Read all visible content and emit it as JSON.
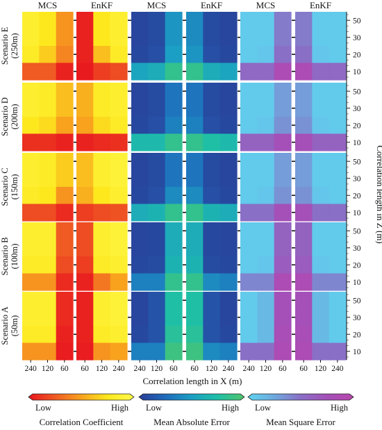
{
  "chart_data": {
    "type": "heatmap",
    "column_titles": [
      "MCS",
      "EnKF",
      "MCS",
      "EnKF",
      "MCS",
      "EnKF"
    ],
    "scenarios": [
      {
        "label": "Scenario E",
        "sub": "(250m)"
      },
      {
        "label": "Scenario D",
        "sub": "(200m)"
      },
      {
        "label": "Scenario C",
        "sub": "(150m)"
      },
      {
        "label": "Scenario B",
        "sub": "(100m)"
      },
      {
        "label": "Scenario A",
        "sub": "(50m)"
      }
    ],
    "x_ticks_mcs": [
      "240",
      "120",
      "60"
    ],
    "x_ticks_enkf": [
      "60",
      "120",
      "240"
    ],
    "z_ticks": [
      "50",
      "30",
      "20",
      "10"
    ],
    "xlabel": "Correlation length in X (m)",
    "ylabel_right": "Correlation length in Z (m)",
    "metrics": [
      {
        "name": "Correlation Coefficient",
        "low_label": "Low",
        "high_label": "High",
        "stops": [
          "#e8141e",
          "#f05a23",
          "#f8a21e",
          "#fde81e",
          "#fef94a"
        ]
      },
      {
        "name": "Mean Absolute Error",
        "low_label": "Low",
        "high_label": "High",
        "stops": [
          "#2a3d96",
          "#1f6bbb",
          "#1b9fc4",
          "#1fbfa6",
          "#52c46a"
        ]
      },
      {
        "name": "Mean Square Error",
        "low_label": "Low",
        "high_label": "High",
        "stops": [
          "#5fd3ef",
          "#6ea9de",
          "#8a6fc6",
          "#a450b8",
          "#b846ad"
        ]
      }
    ],
    "note": "Each panel: 4 rows (Z = 50, 30, 20, 10 top to bottom) x 3 columns (X). Values are relative levels 0 (Low) to 1 (High).",
    "values": {
      "cc": [
        {
          "mcs": [
            [
              0.85,
              0.75,
              0.45
            ],
            [
              0.85,
              0.75,
              0.45
            ],
            [
              0.8,
              0.65,
              0.4
            ],
            [
              0.25,
              0.25,
              0.05
            ]
          ],
          "enkf": [
            [
              0.05,
              0.75,
              0.85
            ],
            [
              0.05,
              0.75,
              0.85
            ],
            [
              0.05,
              0.6,
              0.8
            ],
            [
              0.02,
              0.15,
              0.2
            ]
          ]
        },
        {
          "mcs": [
            [
              0.85,
              0.8,
              0.6
            ],
            [
              0.85,
              0.8,
              0.6
            ],
            [
              0.75,
              0.7,
              0.5
            ],
            [
              0.1,
              0.1,
              0.05
            ]
          ],
          "enkf": [
            [
              0.55,
              0.8,
              0.85
            ],
            [
              0.55,
              0.8,
              0.85
            ],
            [
              0.5,
              0.7,
              0.8
            ],
            [
              0.05,
              0.08,
              0.1
            ]
          ]
        },
        {
          "mcs": [
            [
              0.85,
              0.8,
              0.65
            ],
            [
              0.85,
              0.8,
              0.65
            ],
            [
              0.8,
              0.75,
              0.45
            ],
            [
              0.2,
              0.2,
              0.08
            ]
          ],
          "enkf": [
            [
              0.6,
              0.85,
              0.9
            ],
            [
              0.6,
              0.85,
              0.9
            ],
            [
              0.55,
              0.75,
              0.85
            ],
            [
              0.15,
              0.2,
              0.22
            ]
          ]
        },
        {
          "mcs": [
            [
              0.85,
              0.85,
              0.25
            ],
            [
              0.85,
              0.85,
              0.25
            ],
            [
              0.8,
              0.8,
              0.2
            ],
            [
              0.45,
              0.45,
              0.08
            ]
          ],
          "enkf": [
            [
              0.2,
              0.85,
              0.9
            ],
            [
              0.2,
              0.85,
              0.9
            ],
            [
              0.15,
              0.8,
              0.85
            ],
            [
              0.05,
              0.35,
              0.5
            ]
          ]
        },
        {
          "mcs": [
            [
              0.85,
              0.85,
              0.08
            ],
            [
              0.85,
              0.85,
              0.08
            ],
            [
              0.8,
              0.8,
              0.05
            ],
            [
              0.45,
              0.45,
              0.03
            ]
          ],
          "enkf": [
            [
              0.05,
              0.85,
              0.9
            ],
            [
              0.05,
              0.85,
              0.9
            ],
            [
              0.05,
              0.8,
              0.85
            ],
            [
              0.03,
              0.45,
              0.5
            ]
          ]
        }
      ],
      "mae": [
        {
          "mcs": [
            [
              0.05,
              0.08,
              0.45
            ],
            [
              0.05,
              0.08,
              0.45
            ],
            [
              0.06,
              0.1,
              0.5
            ],
            [
              0.55,
              0.6,
              0.85
            ]
          ],
          "enkf": [
            [
              0.4,
              0.08,
              0.05
            ],
            [
              0.4,
              0.08,
              0.05
            ],
            [
              0.45,
              0.1,
              0.06
            ],
            [
              0.85,
              0.6,
              0.55
            ]
          ]
        },
        {
          "mcs": [
            [
              0.05,
              0.08,
              0.3
            ],
            [
              0.05,
              0.08,
              0.3
            ],
            [
              0.06,
              0.1,
              0.35
            ],
            [
              0.7,
              0.7,
              0.85
            ]
          ],
          "enkf": [
            [
              0.3,
              0.08,
              0.05
            ],
            [
              0.3,
              0.08,
              0.05
            ],
            [
              0.35,
              0.1,
              0.06
            ],
            [
              0.85,
              0.75,
              0.7
            ]
          ]
        },
        {
          "mcs": [
            [
              0.05,
              0.08,
              0.3
            ],
            [
              0.05,
              0.08,
              0.3
            ],
            [
              0.06,
              0.1,
              0.4
            ],
            [
              0.6,
              0.65,
              0.85
            ]
          ],
          "enkf": [
            [
              0.3,
              0.08,
              0.05
            ],
            [
              0.3,
              0.08,
              0.05
            ],
            [
              0.4,
              0.1,
              0.06
            ],
            [
              0.85,
              0.65,
              0.6
            ]
          ]
        },
        {
          "mcs": [
            [
              0.05,
              0.06,
              0.6
            ],
            [
              0.05,
              0.06,
              0.6
            ],
            [
              0.06,
              0.08,
              0.65
            ],
            [
              0.35,
              0.35,
              0.85
            ]
          ],
          "enkf": [
            [
              0.6,
              0.06,
              0.05
            ],
            [
              0.6,
              0.06,
              0.05
            ],
            [
              0.65,
              0.08,
              0.06
            ],
            [
              0.85,
              0.4,
              0.35
            ]
          ]
        },
        {
          "mcs": [
            [
              0.05,
              0.12,
              0.75
            ],
            [
              0.05,
              0.12,
              0.75
            ],
            [
              0.06,
              0.12,
              0.8
            ],
            [
              0.35,
              0.35,
              0.9
            ]
          ],
          "enkf": [
            [
              0.75,
              0.12,
              0.05
            ],
            [
              0.75,
              0.12,
              0.05
            ],
            [
              0.8,
              0.12,
              0.06
            ],
            [
              0.9,
              0.4,
              0.35
            ]
          ]
        }
      ],
      "mse": [
        {
          "mcs": [
            [
              0.05,
              0.05,
              0.45
            ],
            [
              0.05,
              0.05,
              0.45
            ],
            [
              0.05,
              0.08,
              0.5
            ],
            [
              0.55,
              0.55,
              0.85
            ]
          ],
          "enkf": [
            [
              0.45,
              0.05,
              0.05
            ],
            [
              0.45,
              0.05,
              0.05
            ],
            [
              0.5,
              0.08,
              0.05
            ],
            [
              0.85,
              0.55,
              0.55
            ]
          ]
        },
        {
          "mcs": [
            [
              0.05,
              0.05,
              0.3
            ],
            [
              0.05,
              0.05,
              0.3
            ],
            [
              0.05,
              0.08,
              0.35
            ],
            [
              0.6,
              0.6,
              0.75
            ]
          ],
          "enkf": [
            [
              0.3,
              0.05,
              0.05
            ],
            [
              0.3,
              0.05,
              0.05
            ],
            [
              0.35,
              0.08,
              0.05
            ],
            [
              0.75,
              0.6,
              0.6
            ]
          ]
        },
        {
          "mcs": [
            [
              0.05,
              0.05,
              0.3
            ],
            [
              0.05,
              0.05,
              0.3
            ],
            [
              0.05,
              0.08,
              0.35
            ],
            [
              0.5,
              0.5,
              0.75
            ]
          ],
          "enkf": [
            [
              0.3,
              0.05,
              0.05
            ],
            [
              0.3,
              0.05,
              0.05
            ],
            [
              0.35,
              0.08,
              0.05
            ],
            [
              0.75,
              0.5,
              0.5
            ]
          ]
        },
        {
          "mcs": [
            [
              0.05,
              0.05,
              0.6
            ],
            [
              0.05,
              0.05,
              0.6
            ],
            [
              0.05,
              0.08,
              0.65
            ],
            [
              0.4,
              0.4,
              0.85
            ]
          ],
          "enkf": [
            [
              0.6,
              0.05,
              0.05
            ],
            [
              0.6,
              0.05,
              0.05
            ],
            [
              0.65,
              0.08,
              0.05
            ],
            [
              0.85,
              0.4,
              0.4
            ]
          ]
        },
        {
          "mcs": [
            [
              0.05,
              0.15,
              0.75
            ],
            [
              0.05,
              0.15,
              0.75
            ],
            [
              0.05,
              0.15,
              0.8
            ],
            [
              0.5,
              0.5,
              0.85
            ]
          ],
          "enkf": [
            [
              0.75,
              0.15,
              0.05
            ],
            [
              0.75,
              0.15,
              0.05
            ],
            [
              0.8,
              0.15,
              0.05
            ],
            [
              0.85,
              0.5,
              0.5
            ]
          ]
        }
      ]
    }
  }
}
